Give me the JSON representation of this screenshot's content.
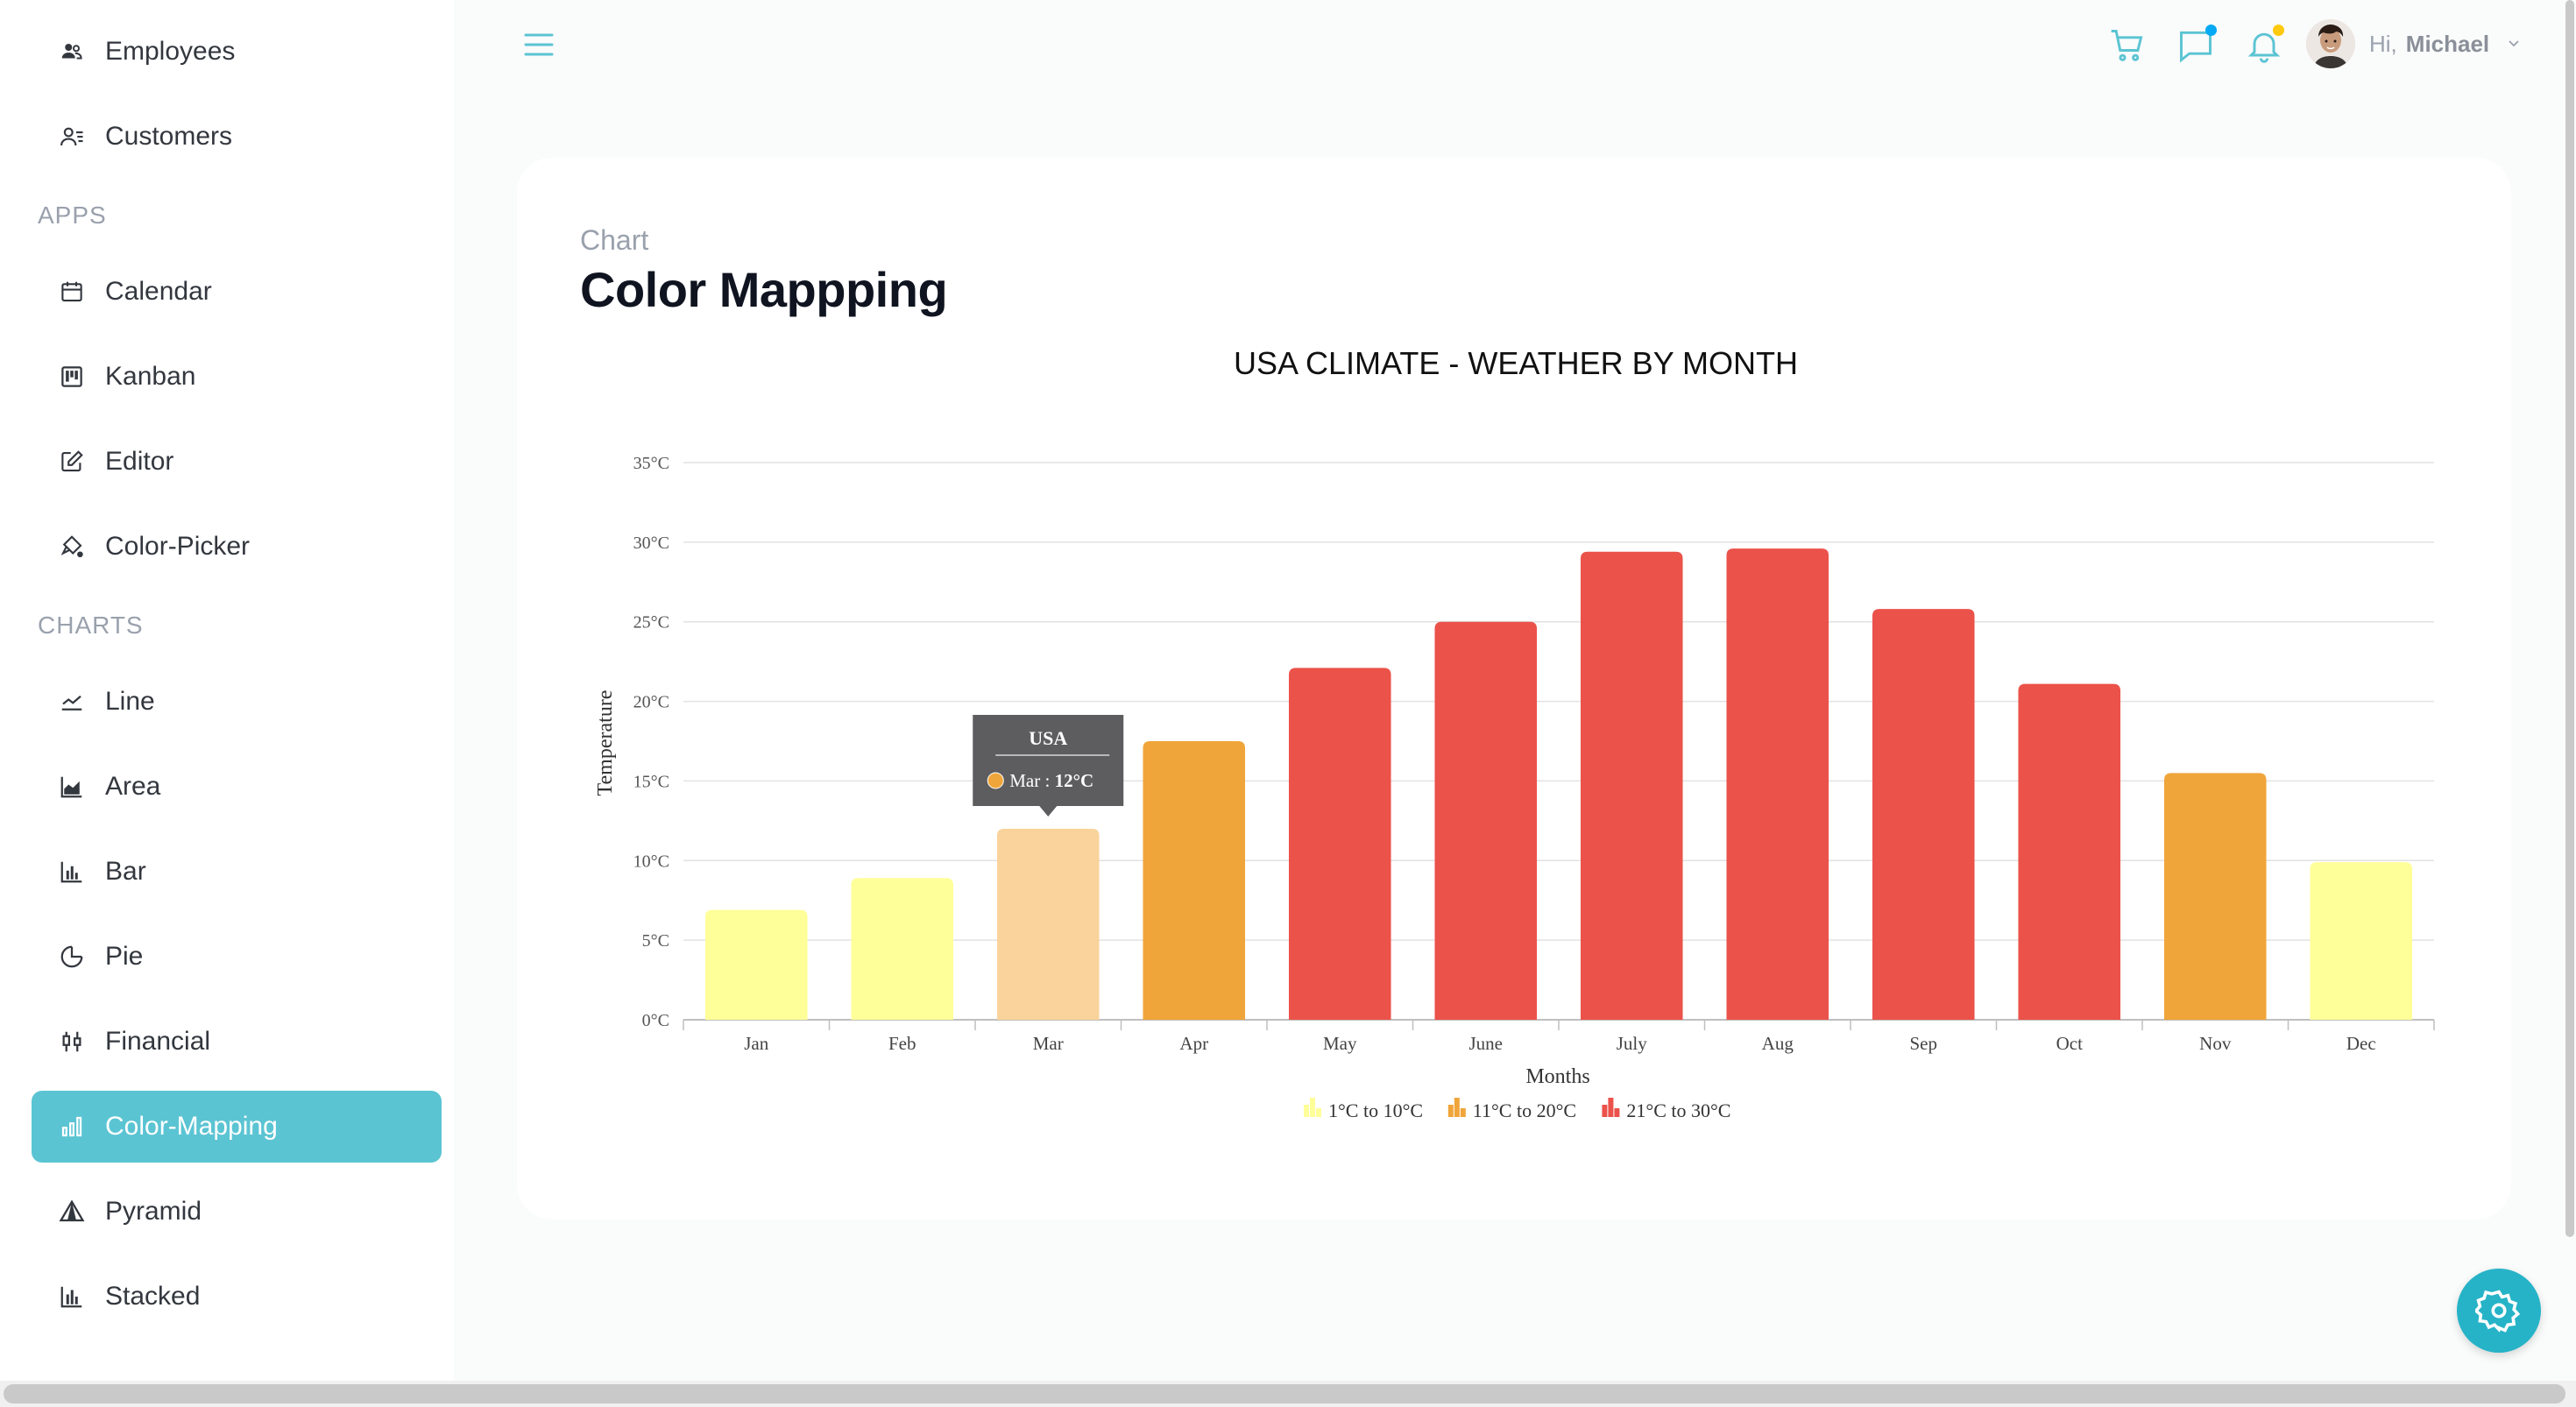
{
  "sidebar": {
    "items_top": [
      {
        "label": "Employees",
        "icon": "employees-icon"
      },
      {
        "label": "Customers",
        "icon": "customers-icon"
      }
    ],
    "sections": {
      "apps": "APPS",
      "charts": "CHARTS"
    },
    "apps_items": [
      {
        "label": "Calendar",
        "icon": "calendar-icon"
      },
      {
        "label": "Kanban",
        "icon": "kanban-icon"
      },
      {
        "label": "Editor",
        "icon": "editor-icon"
      },
      {
        "label": "Color-Picker",
        "icon": "color-picker-icon"
      }
    ],
    "chart_items": [
      {
        "label": "Line",
        "icon": "line-chart-icon"
      },
      {
        "label": "Area",
        "icon": "area-chart-icon"
      },
      {
        "label": "Bar",
        "icon": "bar-chart-icon"
      },
      {
        "label": "Pie",
        "icon": "pie-chart-icon"
      },
      {
        "label": "Financial",
        "icon": "financial-icon"
      },
      {
        "label": "Color-Mapping",
        "icon": "color-mapping-icon",
        "active": true
      },
      {
        "label": "Pyramid",
        "icon": "pyramid-icon"
      },
      {
        "label": "Stacked",
        "icon": "stacked-chart-icon"
      }
    ]
  },
  "header": {
    "greeting": "Hi,",
    "username": "Michael",
    "accent": "#5bc4d3"
  },
  "page": {
    "breadcrumb": "Chart",
    "title": "Color Mappping"
  },
  "chart_data": {
    "type": "bar",
    "title": "USA CLIMATE - WEATHER BY MONTH",
    "xlabel": "Months",
    "ylabel": "Temperature",
    "categories": [
      "Jan",
      "Feb",
      "Mar",
      "Apr",
      "May",
      "June",
      "July",
      "Aug",
      "Sep",
      "Oct",
      "Nov",
      "Dec"
    ],
    "series": [
      {
        "name": "USA",
        "values": [
          6.9,
          8.9,
          12,
          17.5,
          22.1,
          25,
          29.4,
          29.6,
          25.8,
          21.1,
          15.5,
          9.9
        ]
      }
    ],
    "ylim": [
      0,
      35
    ],
    "yticks": [
      0,
      5,
      10,
      15,
      20,
      25,
      30,
      35
    ],
    "y_tick_format": "{v}°C",
    "grid": true,
    "legend_position": "bottom",
    "color_ranges": [
      {
        "label": "1°C to 10°C",
        "min": 1,
        "max": 10,
        "color": "#ffff99"
      },
      {
        "label": "11°C to 20°C",
        "min": 11,
        "max": 20,
        "color": "#f0a53a"
      },
      {
        "label": "21°C to 30°C",
        "min": 21,
        "max": 30,
        "color": "#eb524a"
      }
    ],
    "tooltip": {
      "header": "USA",
      "category": "Mar",
      "value_text": "12°C",
      "highlight_color": "#f9d39b",
      "marker_color": "#f0a53a"
    }
  }
}
